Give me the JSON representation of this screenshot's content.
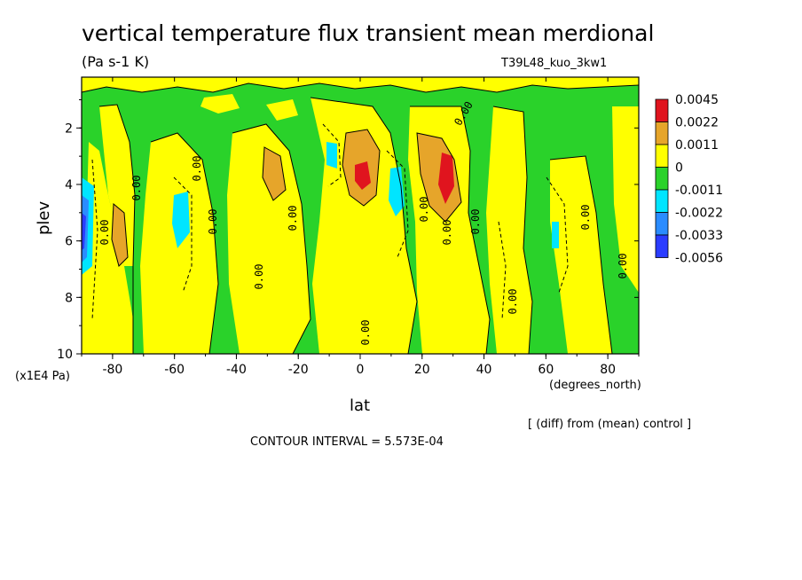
{
  "chart_data": {
    "type": "heatmap",
    "title": "vertical temperature flux transient mean merdional",
    "units": "(Pa s-1 K)",
    "run_label": "T39L48_kuo_3kw1",
    "xlabel": "lat",
    "x_units": "(degrees_north)",
    "ylabel": "plev",
    "y_units": "(x1E4 Pa)",
    "x_ticks": [
      "-80",
      "-60",
      "-40",
      "-20",
      "0",
      "20",
      "40",
      "60",
      "80"
    ],
    "y_ticks": [
      "2",
      "4",
      "6",
      "8",
      "10"
    ],
    "xlim": [
      -90,
      90
    ],
    "ylim": [
      10,
      0.2
    ],
    "footer": "CONTOUR INTERVAL = 5.573E-04",
    "note": "[ (diff) from (mean) control ]",
    "contour_label": "0.00",
    "legend": {
      "levels": [
        "0.0045",
        "0.0022",
        "0.0011",
        "0",
        "-0.0011",
        "-0.0022",
        "-0.0033",
        "-0.0056"
      ],
      "colors": [
        "#e0141e",
        "#e6a52a",
        "#ffff00",
        "#2ad22a",
        "#00e5ff",
        "#2a8cff",
        "#2a3cff"
      ]
    }
  }
}
